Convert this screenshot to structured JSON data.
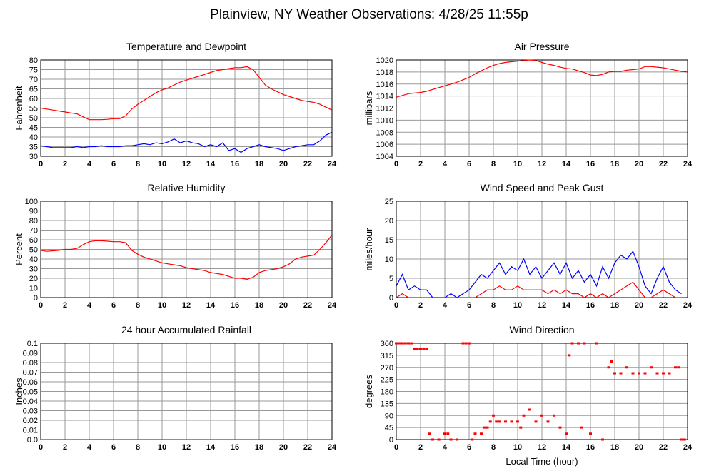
{
  "title": "Plainview, NY Weather Observations: 4/28/25 11:55p",
  "chart_data": [
    {
      "type": "line",
      "title": "Temperature and Dewpoint",
      "ylabel": "Fahrenheit",
      "xlim": [
        0,
        24
      ],
      "xticks": [
        0,
        2,
        4,
        6,
        8,
        10,
        12,
        14,
        16,
        18,
        20,
        22,
        24
      ],
      "ylim": [
        30,
        80
      ],
      "yticks": [
        30,
        35,
        40,
        45,
        50,
        55,
        60,
        65,
        70,
        75,
        80
      ],
      "grid": true,
      "x": [
        0,
        0.5,
        1,
        1.5,
        2,
        2.5,
        3,
        3.5,
        4,
        4.5,
        5,
        5.5,
        6,
        6.5,
        7,
        7.5,
        8,
        8.5,
        9,
        9.5,
        10,
        10.5,
        11,
        11.5,
        12,
        12.5,
        13,
        13.5,
        14,
        14.5,
        15,
        15.5,
        16,
        16.5,
        17,
        17.5,
        18,
        18.5,
        19,
        19.5,
        20,
        20.5,
        21,
        21.5,
        22,
        22.5,
        23,
        23.5,
        24
      ],
      "series": [
        {
          "color": "#ff0000",
          "values": [
            55,
            54.5,
            54,
            53.5,
            53,
            52.5,
            52,
            50.5,
            49,
            49,
            49,
            49.2,
            49.5,
            49.5,
            51,
            54.5,
            57,
            59,
            61,
            63,
            64.5,
            65.5,
            67,
            68.5,
            69.5,
            70.5,
            71.5,
            72.5,
            73.5,
            74.5,
            75,
            75.5,
            76,
            76,
            76.5,
            75,
            71,
            67,
            65,
            63.5,
            62,
            61,
            60,
            59,
            58.5,
            58,
            57,
            55.5,
            54
          ]
        },
        {
          "color": "#0000ff",
          "values": [
            35.5,
            35,
            34.5,
            34.5,
            34.5,
            34.5,
            35,
            34.5,
            35,
            35,
            35.5,
            35,
            35,
            35,
            35.5,
            35.5,
            36,
            36.5,
            36,
            37,
            36.5,
            37.5,
            39,
            37,
            38,
            37,
            36.5,
            35,
            36,
            35,
            37,
            33,
            34,
            32,
            34,
            35,
            36,
            35,
            34.5,
            34,
            33,
            34,
            35,
            35.5,
            36,
            36,
            38,
            41,
            42.5
          ]
        }
      ]
    },
    {
      "type": "line",
      "title": "Air Pressure",
      "ylabel": "millibars",
      "xlim": [
        0,
        24
      ],
      "xticks": [
        0,
        2,
        4,
        6,
        8,
        10,
        12,
        14,
        16,
        18,
        20,
        22,
        24
      ],
      "ylim": [
        1004,
        1020
      ],
      "yticks": [
        1004,
        1006,
        1008,
        1010,
        1012,
        1014,
        1016,
        1018,
        1020
      ],
      "grid": true,
      "x": [
        0,
        0.5,
        1,
        1.5,
        2,
        2.5,
        3,
        3.5,
        4,
        4.5,
        5,
        5.5,
        6,
        6.5,
        7,
        7.5,
        8,
        8.5,
        9,
        9.5,
        10,
        10.5,
        11,
        11.5,
        12,
        12.5,
        13,
        13.5,
        14,
        14.5,
        15,
        15.5,
        16,
        16.5,
        17,
        17.5,
        18,
        18.5,
        19,
        19.5,
        20,
        20.5,
        21,
        21.5,
        22,
        22.5,
        23,
        23.5,
        24
      ],
      "series": [
        {
          "color": "#ff0000",
          "values": [
            1013.8,
            1014.1,
            1014.4,
            1014.5,
            1014.6,
            1014.8,
            1015.1,
            1015.4,
            1015.7,
            1016,
            1016.3,
            1016.7,
            1017.1,
            1017.7,
            1018.2,
            1018.7,
            1019.1,
            1019.4,
            1019.6,
            1019.7,
            1019.8,
            1019.9,
            1020,
            1019.9,
            1019.6,
            1019.3,
            1019.1,
            1018.8,
            1018.6,
            1018.5,
            1018.2,
            1017.9,
            1017.5,
            1017.4,
            1017.6,
            1018,
            1018.1,
            1018.1,
            1018.3,
            1018.4,
            1018.5,
            1018.9,
            1018.9,
            1018.8,
            1018.7,
            1018.5,
            1018.3,
            1018.1,
            1018
          ]
        }
      ]
    },
    {
      "type": "line",
      "title": "Relative Humidity",
      "ylabel": "Percent",
      "xlim": [
        0,
        24
      ],
      "xticks": [
        0,
        2,
        4,
        6,
        8,
        10,
        12,
        14,
        16,
        18,
        20,
        22,
        24
      ],
      "ylim": [
        0,
        100
      ],
      "yticks": [
        0,
        10,
        20,
        30,
        40,
        50,
        60,
        70,
        80,
        90,
        100
      ],
      "grid": true,
      "x": [
        0,
        0.5,
        1,
        1.5,
        2,
        2.5,
        3,
        3.5,
        4,
        4.5,
        5,
        5.5,
        6,
        6.5,
        7,
        7.5,
        8,
        8.5,
        9,
        9.5,
        10,
        10.5,
        11,
        11.5,
        12,
        12.5,
        13,
        13.5,
        14,
        14.5,
        15,
        15.5,
        16,
        16.5,
        17,
        17.5,
        18,
        18.5,
        19,
        19.5,
        20,
        20.5,
        21,
        21.5,
        22,
        22.5,
        23,
        23.5,
        24
      ],
      "series": [
        {
          "color": "#ff0000",
          "values": [
            49,
            48,
            48.5,
            49,
            50,
            50,
            51,
            55,
            58,
            59,
            59,
            58.5,
            58,
            58,
            57,
            49,
            45,
            42,
            40,
            38,
            36,
            35,
            34,
            33,
            31,
            30,
            29,
            28,
            26,
            25,
            24,
            22,
            20,
            20,
            19,
            21,
            26,
            28,
            29,
            30,
            32,
            35,
            40,
            42,
            43,
            44,
            50,
            57,
            65
          ]
        }
      ]
    },
    {
      "type": "line",
      "title": "Wind Speed and Peak Gust",
      "ylabel": "miles/hour",
      "xlim": [
        0,
        24
      ],
      "xticks": [
        0,
        2,
        4,
        6,
        8,
        10,
        12,
        14,
        16,
        18,
        20,
        22,
        24
      ],
      "ylim": [
        0,
        25
      ],
      "yticks": [
        0,
        5,
        10,
        15,
        20,
        25
      ],
      "grid": true,
      "x": [
        0,
        0.5,
        1,
        1.5,
        2,
        2.5,
        3,
        3.5,
        4,
        4.5,
        5,
        5.5,
        6,
        6.5,
        7,
        7.5,
        8,
        8.5,
        9,
        9.5,
        10,
        10.5,
        11,
        11.5,
        12,
        12.5,
        13,
        13.5,
        14,
        14.5,
        15,
        15.5,
        16,
        16.5,
        17,
        17.5,
        18,
        18.5,
        19,
        19.5,
        20,
        20.5,
        21,
        21.5,
        22,
        22.5,
        23,
        23.5,
        24
      ],
      "series": [
        {
          "color": "#0000ff",
          "values": [
            3,
            6,
            2,
            3,
            2,
            2,
            0,
            0,
            0,
            1,
            0,
            1,
            2,
            4,
            6,
            5,
            7,
            9,
            6,
            8,
            7,
            10,
            6,
            8,
            5,
            7,
            9,
            6,
            9,
            5,
            7,
            4,
            6,
            3,
            8,
            5,
            9,
            11,
            10,
            12,
            8,
            3,
            1,
            5,
            8,
            4,
            2,
            1,
            null
          ]
        },
        {
          "color": "#ff0000",
          "values": [
            0,
            1,
            0,
            0,
            0,
            0,
            0,
            0,
            0,
            0,
            0,
            0,
            0,
            0,
            1,
            2,
            2,
            3,
            2,
            2,
            3,
            2,
            2,
            2,
            2,
            1,
            2,
            1,
            2,
            1,
            1,
            0,
            1,
            0,
            1,
            0,
            1,
            2,
            3,
            4,
            2,
            0,
            0,
            1,
            2,
            1,
            0,
            0,
            null
          ]
        }
      ]
    },
    {
      "type": "line",
      "title": "24 hour Accumulated Rainfall",
      "ylabel": "Inches",
      "xlim": [
        0,
        24
      ],
      "xticks": [
        0,
        2,
        4,
        6,
        8,
        10,
        12,
        14,
        16,
        18,
        20,
        22,
        24
      ],
      "ylim": [
        0,
        0.1
      ],
      "yticks": [
        {
          "value": 0,
          "label": "0.0"
        },
        0.01,
        0.02,
        0.03,
        0.04,
        0.05,
        0.06,
        0.07,
        0.08,
        0.09,
        0.1
      ],
      "grid": true,
      "x": [
        0,
        24
      ],
      "series": [
        {
          "color": "#ff0000",
          "values": [
            0,
            0
          ]
        }
      ]
    },
    {
      "type": "scatter",
      "title": "Wind Direction",
      "ylabel": "degrees",
      "xlabel": "Local Time (hour)",
      "xlim": [
        0,
        24
      ],
      "xticks": [
        0,
        2,
        4,
        6,
        8,
        10,
        12,
        14,
        16,
        18,
        20,
        22,
        24
      ],
      "ylim": [
        0,
        360
      ],
      "yticks": [
        0,
        45,
        90,
        135,
        180,
        225,
        270,
        315,
        360
      ],
      "grid": true,
      "x": [
        0,
        0.25,
        0.5,
        0.75,
        1,
        1.25,
        1.5,
        1.75,
        2,
        2.25,
        2.5,
        2.75,
        3,
        3.5,
        4,
        4.25,
        4.5,
        5,
        5.5,
        5.75,
        6,
        6.25,
        6.5,
        7,
        7.25,
        7.5,
        7.75,
        8,
        8.25,
        8.5,
        9,
        9.5,
        10,
        10.25,
        10.5,
        11,
        11.5,
        12,
        12.5,
        13,
        13.5,
        14,
        14.25,
        14.5,
        15,
        15.25,
        15.5,
        16,
        16.5,
        17,
        17.5,
        17.75,
        18,
        18.5,
        19,
        19.5,
        20,
        20.5,
        21,
        21.5,
        22,
        22.5,
        23,
        23.25,
        23.5,
        23.75
      ],
      "series": [
        {
          "color": "#ff0000",
          "values": [
            360,
            360,
            360,
            360,
            360,
            360,
            338,
            338,
            338,
            338,
            338,
            22,
            0,
            0,
            22,
            22,
            0,
            0,
            360,
            360,
            360,
            0,
            22,
            22,
            45,
            45,
            67,
            90,
            67,
            67,
            67,
            67,
            67,
            45,
            90,
            112,
            67,
            90,
            67,
            90,
            45,
            22,
            315,
            360,
            360,
            45,
            360,
            22,
            360,
            0,
            270,
            292,
            248,
            248,
            270,
            248,
            248,
            248,
            270,
            248,
            248,
            248,
            270,
            270,
            0,
            0
          ]
        }
      ]
    }
  ]
}
